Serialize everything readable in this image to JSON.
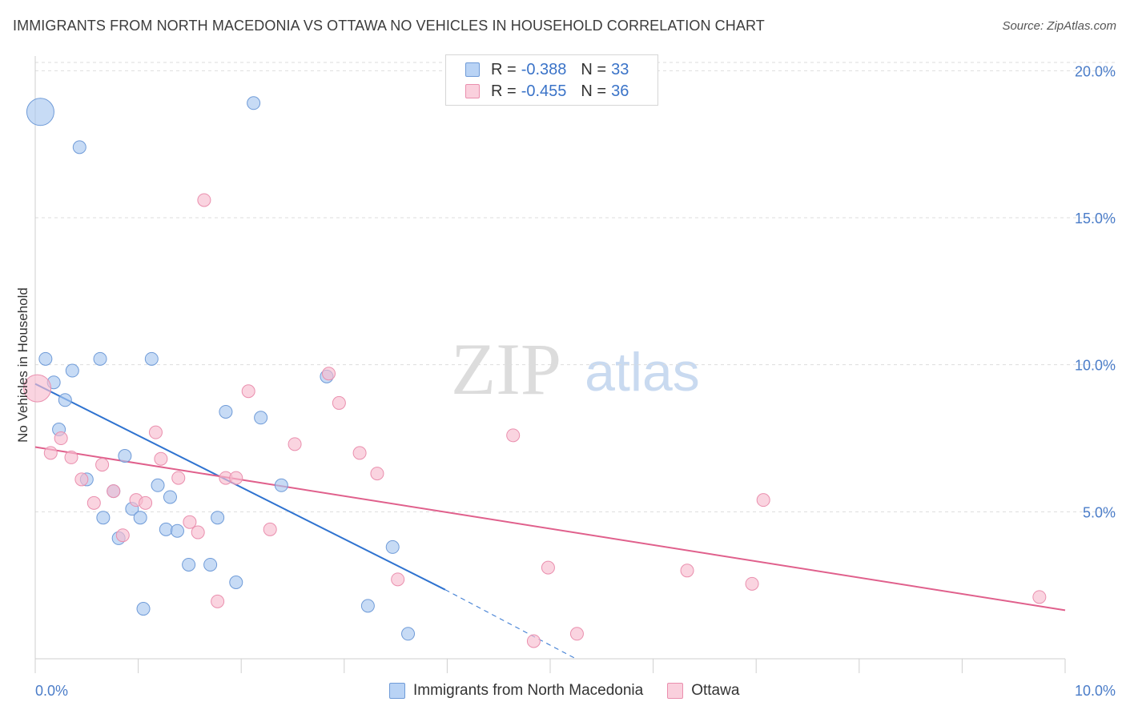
{
  "title": "IMMIGRANTS FROM NORTH MACEDONIA VS OTTAWA NO VEHICLES IN HOUSEHOLD CORRELATION CHART",
  "source": "Source: ZipAtlas.com",
  "watermark": {
    "zip": "ZIP",
    "atlas": "atlas"
  },
  "legend": {
    "series1": {
      "r_label": "R =",
      "r_value": "-0.388",
      "n_label": "N =",
      "n_value": "33"
    },
    "series2": {
      "r_label": "R =",
      "r_value": "-0.455",
      "n_label": "N =",
      "n_value": "36"
    }
  },
  "bottom_legend": {
    "series1": "Immigrants from North Macedonia",
    "series2": "Ottawa"
  },
  "colors": {
    "blue_fill": "#a9c8f0",
    "blue_stroke": "#6f9bd8",
    "blue_line": "#2f73d0",
    "pink_fill": "#f7bdd0",
    "pink_stroke": "#ea8fae",
    "pink_line": "#e0608c",
    "tick_label": "#4a7cc8",
    "grid": "#dddddd"
  },
  "chart_data": {
    "type": "scatter",
    "title": "IMMIGRANTS FROM NORTH MACEDONIA VS OTTAWA NO VEHICLES IN HOUSEHOLD CORRELATION CHART",
    "xlabel": "",
    "ylabel": "No Vehicles in Household",
    "xlim": [
      0,
      10
    ],
    "ylim": [
      0,
      20.5
    ],
    "x_tick_labels": [
      "0.0%",
      "10.0%"
    ],
    "y_ticks": [
      5,
      10,
      15,
      20
    ],
    "y_tick_labels": [
      "5.0%",
      "10.0%",
      "15.0%",
      "20.0%"
    ],
    "grid": true,
    "series": [
      {
        "name": "Immigrants from North Macedonia",
        "color": "#a9c8f0",
        "points": [
          {
            "x": 0.05,
            "y": 18.6,
            "big": true
          },
          {
            "x": 0.43,
            "y": 17.4
          },
          {
            "x": 2.12,
            "y": 18.9
          },
          {
            "x": 0.1,
            "y": 10.2
          },
          {
            "x": 0.18,
            "y": 9.4
          },
          {
            "x": 0.36,
            "y": 9.8
          },
          {
            "x": 0.63,
            "y": 10.2
          },
          {
            "x": 1.13,
            "y": 10.2
          },
          {
            "x": 0.29,
            "y": 8.8
          },
          {
            "x": 1.85,
            "y": 8.4
          },
          {
            "x": 2.19,
            "y": 8.2
          },
          {
            "x": 2.83,
            "y": 9.6
          },
          {
            "x": 0.23,
            "y": 7.8
          },
          {
            "x": 0.87,
            "y": 6.9
          },
          {
            "x": 0.5,
            "y": 6.1
          },
          {
            "x": 0.76,
            "y": 5.7
          },
          {
            "x": 1.19,
            "y": 5.9
          },
          {
            "x": 1.31,
            "y": 5.5
          },
          {
            "x": 2.39,
            "y": 5.9
          },
          {
            "x": 0.66,
            "y": 4.8
          },
          {
            "x": 0.94,
            "y": 5.1
          },
          {
            "x": 1.02,
            "y": 4.8
          },
          {
            "x": 1.77,
            "y": 4.8
          },
          {
            "x": 0.81,
            "y": 4.1
          },
          {
            "x": 1.27,
            "y": 4.4
          },
          {
            "x": 1.38,
            "y": 4.35
          },
          {
            "x": 1.49,
            "y": 3.2
          },
          {
            "x": 1.7,
            "y": 3.2
          },
          {
            "x": 1.95,
            "y": 2.6
          },
          {
            "x": 3.47,
            "y": 3.8
          },
          {
            "x": 1.05,
            "y": 1.7
          },
          {
            "x": 3.23,
            "y": 1.8
          },
          {
            "x": 3.62,
            "y": 0.85
          }
        ]
      },
      {
        "name": "Ottawa",
        "color": "#f7bdd0",
        "points": [
          {
            "x": 0.02,
            "y": 9.2,
            "big": true
          },
          {
            "x": 1.64,
            "y": 15.6
          },
          {
            "x": 2.85,
            "y": 9.7
          },
          {
            "x": 2.07,
            "y": 9.1
          },
          {
            "x": 2.95,
            "y": 8.7
          },
          {
            "x": 0.25,
            "y": 7.5
          },
          {
            "x": 1.17,
            "y": 7.7
          },
          {
            "x": 2.52,
            "y": 7.3
          },
          {
            "x": 4.64,
            "y": 7.6
          },
          {
            "x": 0.15,
            "y": 7.0
          },
          {
            "x": 0.35,
            "y": 6.85
          },
          {
            "x": 0.65,
            "y": 6.6
          },
          {
            "x": 1.22,
            "y": 6.8
          },
          {
            "x": 3.15,
            "y": 7.0
          },
          {
            "x": 0.45,
            "y": 6.1
          },
          {
            "x": 1.39,
            "y": 6.15
          },
          {
            "x": 1.85,
            "y": 6.15
          },
          {
            "x": 1.95,
            "y": 6.15
          },
          {
            "x": 3.32,
            "y": 6.3
          },
          {
            "x": 0.76,
            "y": 5.7
          },
          {
            "x": 0.57,
            "y": 5.3
          },
          {
            "x": 0.98,
            "y": 5.4
          },
          {
            "x": 1.07,
            "y": 5.3
          },
          {
            "x": 7.07,
            "y": 5.4
          },
          {
            "x": 1.5,
            "y": 4.65
          },
          {
            "x": 1.58,
            "y": 4.3
          },
          {
            "x": 2.28,
            "y": 4.4
          },
          {
            "x": 0.85,
            "y": 4.2
          },
          {
            "x": 4.98,
            "y": 3.1
          },
          {
            "x": 6.33,
            "y": 3.0
          },
          {
            "x": 6.96,
            "y": 2.55
          },
          {
            "x": 3.52,
            "y": 2.7
          },
          {
            "x": 1.77,
            "y": 1.95
          },
          {
            "x": 5.26,
            "y": 0.85
          },
          {
            "x": 4.84,
            "y": 0.6
          },
          {
            "x": 9.75,
            "y": 2.1
          }
        ]
      }
    ],
    "trendlines": [
      {
        "series": "Immigrants from North Macedonia",
        "x": [
          0.0,
          3.98
        ],
        "y": [
          9.35,
          2.35
        ],
        "dashed_extension": {
          "x": [
            3.98,
            5.25
          ],
          "y": [
            2.35,
            0.0
          ]
        }
      },
      {
        "series": "Ottawa",
        "x": [
          0.0,
          10.0
        ],
        "y": [
          7.2,
          1.65
        ]
      }
    ]
  }
}
